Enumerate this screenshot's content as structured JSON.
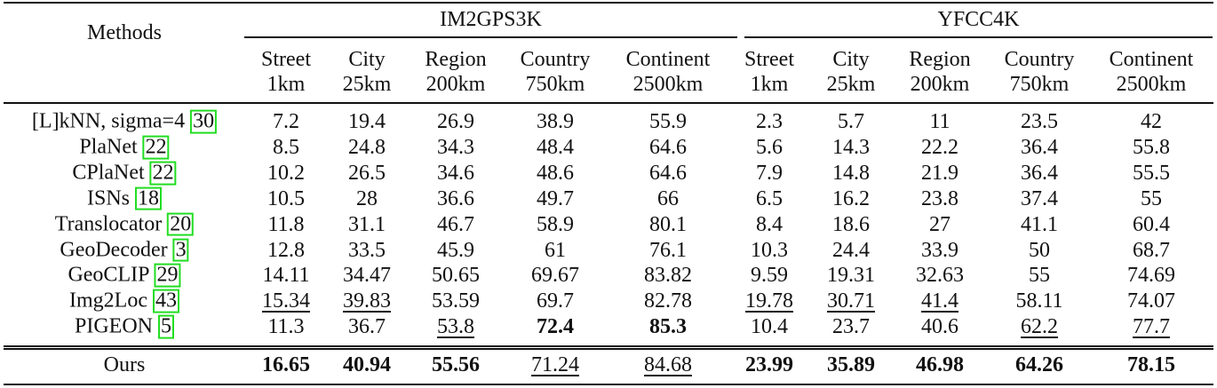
{
  "table": {
    "methods_header": "Methods",
    "groups": [
      {
        "name": "IM2GPS3K",
        "columns": [
          [
            "Street",
            "1km"
          ],
          [
            "City",
            "25km"
          ],
          [
            "Region",
            "200km"
          ],
          [
            "Country",
            "750km"
          ],
          [
            "Continent",
            "2500km"
          ]
        ]
      },
      {
        "name": "YFCC4K",
        "columns": [
          [
            "Street",
            "1km"
          ],
          [
            "City",
            "25km"
          ],
          [
            "Region",
            "200km"
          ],
          [
            "Country",
            "750km"
          ],
          [
            "Continent",
            "2500km"
          ]
        ]
      }
    ],
    "rows": [
      {
        "method": "[L]kNN, sigma=4",
        "ref": "30",
        "values": [
          7.2,
          19.4,
          26.9,
          38.9,
          55.9,
          2.3,
          5.7,
          11,
          23.5,
          42
        ],
        "bold": [],
        "underline": []
      },
      {
        "method": "PlaNet",
        "ref": "22",
        "values": [
          8.5,
          24.8,
          34.3,
          48.4,
          64.6,
          5.6,
          14.3,
          22.2,
          36.4,
          55.8
        ],
        "bold": [],
        "underline": []
      },
      {
        "method": "CPlaNet",
        "ref": "22",
        "values": [
          10.2,
          26.5,
          34.6,
          48.6,
          64.6,
          7.9,
          14.8,
          21.9,
          36.4,
          55.5
        ],
        "bold": [],
        "underline": []
      },
      {
        "method": "ISNs",
        "ref": "18",
        "values": [
          10.5,
          28,
          36.6,
          49.7,
          66,
          6.5,
          16.2,
          23.8,
          37.4,
          55
        ],
        "bold": [],
        "underline": []
      },
      {
        "method": "Translocator",
        "ref": "20",
        "values": [
          11.8,
          31.1,
          46.7,
          58.9,
          80.1,
          8.4,
          18.6,
          27,
          41.1,
          60.4
        ],
        "bold": [],
        "underline": []
      },
      {
        "method": "GeoDecoder",
        "ref": "3",
        "values": [
          12.8,
          33.5,
          45.9,
          61,
          76.1,
          10.3,
          24.4,
          33.9,
          50,
          68.7
        ],
        "bold": [],
        "underline": []
      },
      {
        "method": "GeoCLIP",
        "ref": "29",
        "values": [
          14.11,
          34.47,
          50.65,
          69.67,
          83.82,
          9.59,
          19.31,
          32.63,
          55,
          74.69
        ],
        "bold": [],
        "underline": []
      },
      {
        "method": "Img2Loc",
        "ref": "43",
        "values": [
          15.34,
          39.83,
          53.59,
          69.7,
          82.78,
          19.78,
          30.71,
          41.4,
          58.11,
          74.07
        ],
        "bold": [],
        "underline": [
          0,
          1,
          5,
          6,
          7
        ]
      },
      {
        "method": "PIGEON",
        "ref": "5",
        "values": [
          11.3,
          36.7,
          53.8,
          72.4,
          85.3,
          10.4,
          23.7,
          40.6,
          62.2,
          77.7
        ],
        "bold": [
          3,
          4
        ],
        "underline": [
          2,
          8,
          9
        ]
      }
    ],
    "ours": {
      "method": "Ours",
      "values": [
        16.65,
        40.94,
        55.56,
        71.24,
        84.68,
        23.99,
        35.89,
        46.98,
        64.26,
        78.15
      ],
      "bold": [
        0,
        1,
        2,
        5,
        6,
        7,
        8,
        9
      ],
      "underline": [
        3,
        4
      ]
    }
  }
}
